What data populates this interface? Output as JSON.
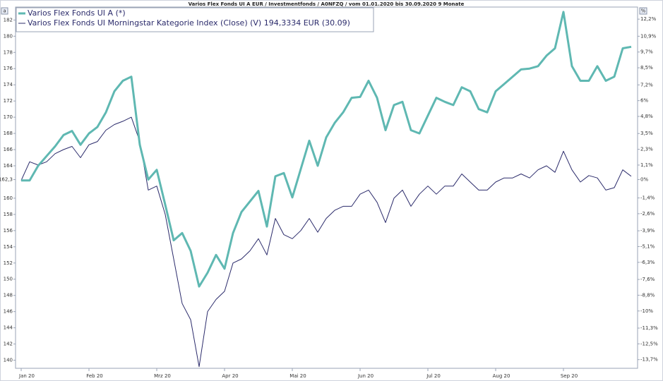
{
  "chart_data": {
    "type": "line",
    "title": "Varios Flex Fonds UI A EUR / Investmentfonds / A0NFZQ / vom 01.01.2020 bis 30.09.2020 9 Monate",
    "left_axis_icon": "a",
    "right_axis_icon": "%",
    "categories": [
      "Jan 20",
      null,
      null,
      null,
      null,
      null,
      null,
      null,
      "Feb 20",
      null,
      null,
      null,
      null,
      null,
      null,
      null,
      "Mrz 20",
      null,
      null,
      null,
      null,
      null,
      null,
      null,
      "Apr 20",
      null,
      null,
      null,
      null,
      null,
      null,
      null,
      "Mai 20",
      null,
      null,
      null,
      null,
      null,
      null,
      null,
      "Jun 20",
      null,
      null,
      null,
      null,
      null,
      null,
      null,
      "Jul 20",
      null,
      null,
      null,
      null,
      null,
      null,
      null,
      "Aug 20",
      null,
      null,
      null,
      null,
      null,
      null,
      null,
      "Sep 20",
      null,
      null,
      null,
      null,
      null,
      null,
      null,
      null
    ],
    "series": [
      {
        "name": "Varios Flex Fonds UI A (*)",
        "color": "#5fb8b2",
        "values": [
          162.2,
          162.2,
          164.0,
          165.2,
          166.4,
          167.8,
          168.3,
          166.6,
          168.0,
          168.8,
          170.6,
          173.2,
          174.5,
          175.0,
          166.6,
          162.3,
          163.5,
          159.2,
          154.8,
          155.7,
          153.5,
          149.1,
          150.8,
          153.0,
          151.3,
          155.7,
          158.3,
          159.6,
          160.9,
          156.5,
          162.7,
          163.1,
          160.1,
          163.6,
          167.1,
          164.0,
          167.5,
          169.3,
          170.6,
          172.4,
          172.5,
          174.5,
          172.4,
          168.4,
          171.5,
          171.9,
          168.4,
          168.0,
          170.2,
          172.4,
          171.9,
          171.5,
          173.7,
          173.2,
          171.0,
          170.6,
          173.2,
          174.1,
          175.0,
          175.9,
          176.0,
          176.3,
          177.6,
          178.5,
          183.0,
          176.3,
          174.5,
          174.5,
          176.3,
          174.5,
          175.0,
          178.5,
          178.7
        ]
      },
      {
        "name": "Varios Flex Fonds UI Morningstar Kategorie Index (Close) (V) 194,3334 EUR (30.09)",
        "color": "#2b2b6b",
        "values": [
          162.2,
          164.5,
          164.1,
          164.5,
          165.5,
          166.0,
          166.4,
          165.0,
          166.6,
          167.0,
          168.4,
          169.1,
          169.5,
          170.0,
          167.0,
          161.0,
          161.5,
          158.0,
          152.5,
          147.0,
          145.0,
          139.2,
          146.0,
          147.5,
          148.5,
          152.0,
          152.5,
          153.5,
          155.0,
          153.0,
          157.5,
          155.5,
          155.0,
          156.0,
          157.5,
          155.8,
          157.5,
          158.5,
          159.0,
          159.0,
          160.5,
          161.0,
          159.5,
          157.0,
          160.0,
          161.0,
          159.0,
          160.5,
          161.5,
          160.5,
          161.5,
          161.5,
          163.0,
          162.0,
          161.0,
          161.0,
          162.0,
          162.5,
          162.5,
          163.0,
          162.5,
          163.5,
          164.0,
          163.2,
          165.8,
          163.5,
          162.0,
          162.8,
          162.5,
          161.0,
          161.3,
          163.5,
          162.7
        ]
      }
    ],
    "ylim": [
      139,
      183.6
    ],
    "yticks": [
      140,
      142,
      144,
      146,
      148,
      150,
      152,
      154,
      156,
      158,
      160,
      {
        "value": 162.3,
        "label": "162,3"
      },
      164,
      166,
      168,
      170,
      172,
      174,
      176,
      178,
      180,
      182
    ],
    "y2lim": [
      -14.36,
      13.12
    ],
    "y2ticks": [
      {
        "value": 12.2,
        "label": "12,2%"
      },
      {
        "value": 10.9,
        "label": "10,9%"
      },
      {
        "value": 9.7,
        "label": "9,7%"
      },
      {
        "value": 8.5,
        "label": "8,5%"
      },
      {
        "value": 7.2,
        "label": "7,2%"
      },
      {
        "value": 6,
        "label": "6%"
      },
      {
        "value": 4.8,
        "label": "4,8%"
      },
      {
        "value": 3.5,
        "label": "3,5%"
      },
      {
        "value": 2.3,
        "label": "2,3%"
      },
      {
        "value": 1.1,
        "label": "1,1%"
      },
      {
        "value": 0,
        "label": "0%"
      },
      {
        "value": -1.4,
        "label": "-1,4%"
      },
      {
        "value": -2.6,
        "label": "-2,6%"
      },
      {
        "value": -3.9,
        "label": "-3,9%"
      },
      {
        "value": -5.1,
        "label": "-5,1%"
      },
      {
        "value": -6.3,
        "label": "-6,3%"
      },
      {
        "value": -7.6,
        "label": "-7,6%"
      },
      {
        "value": -8.8,
        "label": "-8,8%"
      },
      {
        "value": -10,
        "label": "-10%"
      },
      {
        "value": -11.3,
        "label": "-11,3%"
      },
      {
        "value": -12.5,
        "label": "-12,5%"
      },
      {
        "value": -13.7,
        "label": "-13,7%"
      }
    ],
    "legend": "top-left",
    "grid": false
  }
}
